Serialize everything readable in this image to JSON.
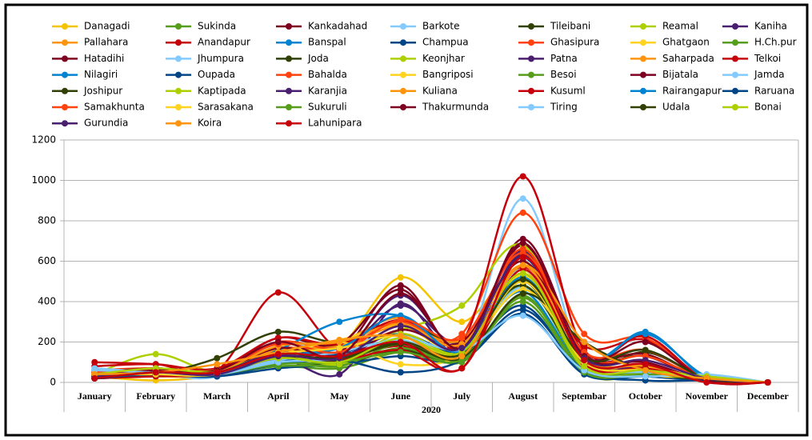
{
  "chart_data": {
    "type": "line",
    "smooth": true,
    "grid": true,
    "legend": "top",
    "categories": [
      "January",
      "February",
      "March",
      "April",
      "May",
      "June",
      "July",
      "August",
      "Septembar",
      "October",
      "November",
      "December"
    ],
    "xlabel": "2020",
    "ylim": [
      0,
      1200
    ],
    "yticks": [
      0,
      200,
      400,
      600,
      800,
      1000,
      1200
    ],
    "series": [
      {
        "name": "Danagadi",
        "color": "#f5c400",
        "values": [
          30,
          10,
          40,
          150,
          180,
          520,
          300,
          560,
          120,
          60,
          10,
          0
        ]
      },
      {
        "name": "Sukinda",
        "color": "#579d1c",
        "values": [
          40,
          60,
          50,
          80,
          70,
          150,
          110,
          430,
          60,
          30,
          20,
          0
        ]
      },
      {
        "name": "Kankadahad",
        "color": "#7e0021",
        "values": [
          20,
          60,
          40,
          200,
          150,
          480,
          150,
          710,
          140,
          130,
          10,
          0
        ]
      },
      {
        "name": "Barkote",
        "color": "#83caff",
        "values": [
          60,
          40,
          30,
          200,
          140,
          240,
          130,
          910,
          100,
          60,
          20,
          0
        ]
      },
      {
        "name": "Tileibani",
        "color": "#314004",
        "values": [
          30,
          50,
          40,
          100,
          90,
          160,
          120,
          500,
          80,
          150,
          20,
          0
        ]
      },
      {
        "name": "Reamal",
        "color": "#aecf00",
        "values": [
          40,
          140,
          50,
          120,
          110,
          200,
          160,
          600,
          60,
          40,
          30,
          0
        ]
      },
      {
        "name": "Kaniha",
        "color": "#4b1f6f",
        "values": [
          20,
          40,
          40,
          120,
          40,
          390,
          140,
          640,
          100,
          50,
          10,
          0
        ]
      },
      {
        "name": "Pallahara",
        "color": "#ff950e",
        "values": [
          50,
          60,
          40,
          130,
          200,
          320,
          180,
          540,
          130,
          60,
          20,
          0
        ]
      },
      {
        "name": "Anandapur",
        "color": "#c5000b",
        "values": [
          80,
          90,
          60,
          445,
          160,
          180,
          140,
          570,
          180,
          210,
          10,
          0
        ]
      },
      {
        "name": "Banspal",
        "color": "#0084d1",
        "values": [
          30,
          40,
          30,
          100,
          130,
          200,
          160,
          450,
          60,
          30,
          20,
          0
        ]
      },
      {
        "name": "Champua",
        "color": "#004586",
        "values": [
          20,
          30,
          30,
          70,
          90,
          130,
          110,
          340,
          40,
          30,
          10,
          0
        ]
      },
      {
        "name": "Ghasipura",
        "color": "#ff420e",
        "values": [
          60,
          70,
          50,
          170,
          150,
          260,
          240,
          840,
          240,
          220,
          20,
          0
        ]
      },
      {
        "name": "Ghatgaon",
        "color": "#ffd320",
        "values": [
          40,
          30,
          40,
          150,
          210,
          280,
          160,
          530,
          110,
          50,
          20,
          0
        ]
      },
      {
        "name": "H.Ch.pur",
        "color": "#579d1c",
        "values": [
          30,
          50,
          40,
          80,
          90,
          170,
          120,
          480,
          70,
          50,
          20,
          0
        ]
      },
      {
        "name": "Hatadihi",
        "color": "#7e0021",
        "values": [
          50,
          70,
          60,
          220,
          190,
          460,
          160,
          680,
          150,
          140,
          10,
          0
        ]
      },
      {
        "name": "Jhumpura",
        "color": "#83caff",
        "values": [
          70,
          50,
          40,
          120,
          170,
          240,
          150,
          470,
          90,
          50,
          30,
          0
        ]
      },
      {
        "name": "Joda",
        "color": "#314004",
        "values": [
          20,
          40,
          120,
          250,
          200,
          300,
          200,
          480,
          90,
          40,
          20,
          0
        ]
      },
      {
        "name": "Keonjhar",
        "color": "#aecf00",
        "values": [
          30,
          60,
          50,
          160,
          170,
          260,
          380,
          680,
          110,
          70,
          20,
          0
        ]
      },
      {
        "name": "Patna",
        "color": "#4b1f6f",
        "values": [
          30,
          50,
          50,
          170,
          140,
          380,
          200,
          650,
          110,
          80,
          20,
          0
        ]
      },
      {
        "name": "Saharpada",
        "color": "#ff950e",
        "values": [
          40,
          50,
          60,
          160,
          180,
          280,
          210,
          560,
          120,
          60,
          20,
          0
        ]
      },
      {
        "name": "Telkoi",
        "color": "#c5000b",
        "values": [
          100,
          90,
          70,
          220,
          190,
          310,
          200,
          1020,
          160,
          230,
          10,
          0
        ]
      },
      {
        "name": "Nilagiri",
        "color": "#0084d1",
        "values": [
          60,
          40,
          40,
          160,
          300,
          330,
          160,
          620,
          100,
          250,
          20,
          0
        ]
      },
      {
        "name": "Oupada",
        "color": "#004586",
        "values": [
          20,
          40,
          30,
          100,
          140,
          240,
          150,
          380,
          50,
          30,
          10,
          0
        ]
      },
      {
        "name": "Bahalda",
        "color": "#ff420e",
        "values": [
          50,
          60,
          60,
          200,
          170,
          300,
          190,
          660,
          130,
          130,
          20,
          0
        ]
      },
      {
        "name": "Bangriposi",
        "color": "#ffd320",
        "values": [
          40,
          50,
          40,
          130,
          200,
          90,
          140,
          460,
          130,
          40,
          20,
          0
        ]
      },
      {
        "name": "Besoi",
        "color": "#579d1c",
        "values": [
          20,
          40,
          40,
          100,
          80,
          190,
          100,
          420,
          60,
          50,
          20,
          0
        ]
      },
      {
        "name": "Bijatala",
        "color": "#7e0021",
        "values": [
          40,
          60,
          50,
          170,
          120,
          260,
          200,
          600,
          130,
          100,
          10,
          0
        ]
      },
      {
        "name": "Jamda",
        "color": "#83caff",
        "values": [
          60,
          50,
          40,
          110,
          150,
          210,
          140,
          560,
          100,
          50,
          30,
          0
        ]
      },
      {
        "name": "Joshipur",
        "color": "#314004",
        "values": [
          30,
          40,
          50,
          120,
          110,
          190,
          120,
          440,
          200,
          60,
          10,
          0
        ]
      },
      {
        "name": "Kaptipada",
        "color": "#aecf00",
        "values": [
          40,
          60,
          60,
          140,
          90,
          240,
          150,
          520,
          70,
          40,
          20,
          0
        ]
      },
      {
        "name": "Karanjia",
        "color": "#4b1f6f",
        "values": [
          20,
          50,
          50,
          150,
          130,
          430,
          170,
          630,
          110,
          70,
          20,
          0
        ]
      },
      {
        "name": "Kuliana",
        "color": "#ff950e",
        "values": [
          50,
          60,
          60,
          180,
          200,
          290,
          190,
          580,
          120,
          80,
          20,
          0
        ]
      },
      {
        "name": "Kusuml",
        "color": "#c5000b",
        "values": [
          20,
          30,
          40,
          130,
          110,
          160,
          70,
          560,
          90,
          70,
          10,
          0
        ]
      },
      {
        "name": "Rairangapur",
        "color": "#0084d1",
        "values": [
          40,
          50,
          40,
          130,
          170,
          330,
          150,
          520,
          110,
          240,
          30,
          0
        ]
      },
      {
        "name": "Raruana",
        "color": "#004586",
        "values": [
          20,
          40,
          30,
          90,
          110,
          50,
          110,
          360,
          60,
          10,
          10,
          0
        ]
      },
      {
        "name": "Samakhunta",
        "color": "#ff420e",
        "values": [
          50,
          60,
          60,
          190,
          150,
          310,
          220,
          640,
          150,
          160,
          20,
          0
        ]
      },
      {
        "name": "Sarasakana",
        "color": "#ffd320",
        "values": [
          40,
          40,
          40,
          140,
          170,
          230,
          140,
          500,
          100,
          60,
          20,
          0
        ]
      },
      {
        "name": "Sukuruli",
        "color": "#579d1c",
        "values": [
          30,
          50,
          40,
          90,
          100,
          150,
          110,
          400,
          50,
          40,
          20,
          0
        ]
      },
      {
        "name": "Thakurmunda",
        "color": "#7e0021",
        "values": [
          40,
          60,
          60,
          200,
          130,
          440,
          170,
          690,
          130,
          200,
          10,
          0
        ]
      },
      {
        "name": "Tiring",
        "color": "#83caff",
        "values": [
          60,
          50,
          40,
          100,
          120,
          220,
          160,
          330,
          60,
          30,
          40,
          0
        ]
      },
      {
        "name": "Udala",
        "color": "#314004",
        "values": [
          30,
          50,
          50,
          130,
          120,
          200,
          140,
          510,
          120,
          160,
          20,
          0
        ]
      },
      {
        "name": "Bonai",
        "color": "#aecf00",
        "values": [
          40,
          70,
          50,
          120,
          100,
          220,
          150,
          540,
          80,
          60,
          30,
          0
        ]
      },
      {
        "name": "Gurundia",
        "color": "#4b1f6f",
        "values": [
          30,
          50,
          40,
          130,
          120,
          280,
          170,
          620,
          120,
          110,
          20,
          0
        ]
      },
      {
        "name": "Koira",
        "color": "#ff950e",
        "values": [
          40,
          50,
          90,
          150,
          210,
          230,
          130,
          580,
          200,
          60,
          20,
          0
        ]
      },
      {
        "name": "Lahunipara",
        "color": "#c5000b",
        "values": [
          20,
          50,
          50,
          140,
          130,
          200,
          70,
          620,
          110,
          90,
          0,
          0
        ]
      }
    ]
  }
}
